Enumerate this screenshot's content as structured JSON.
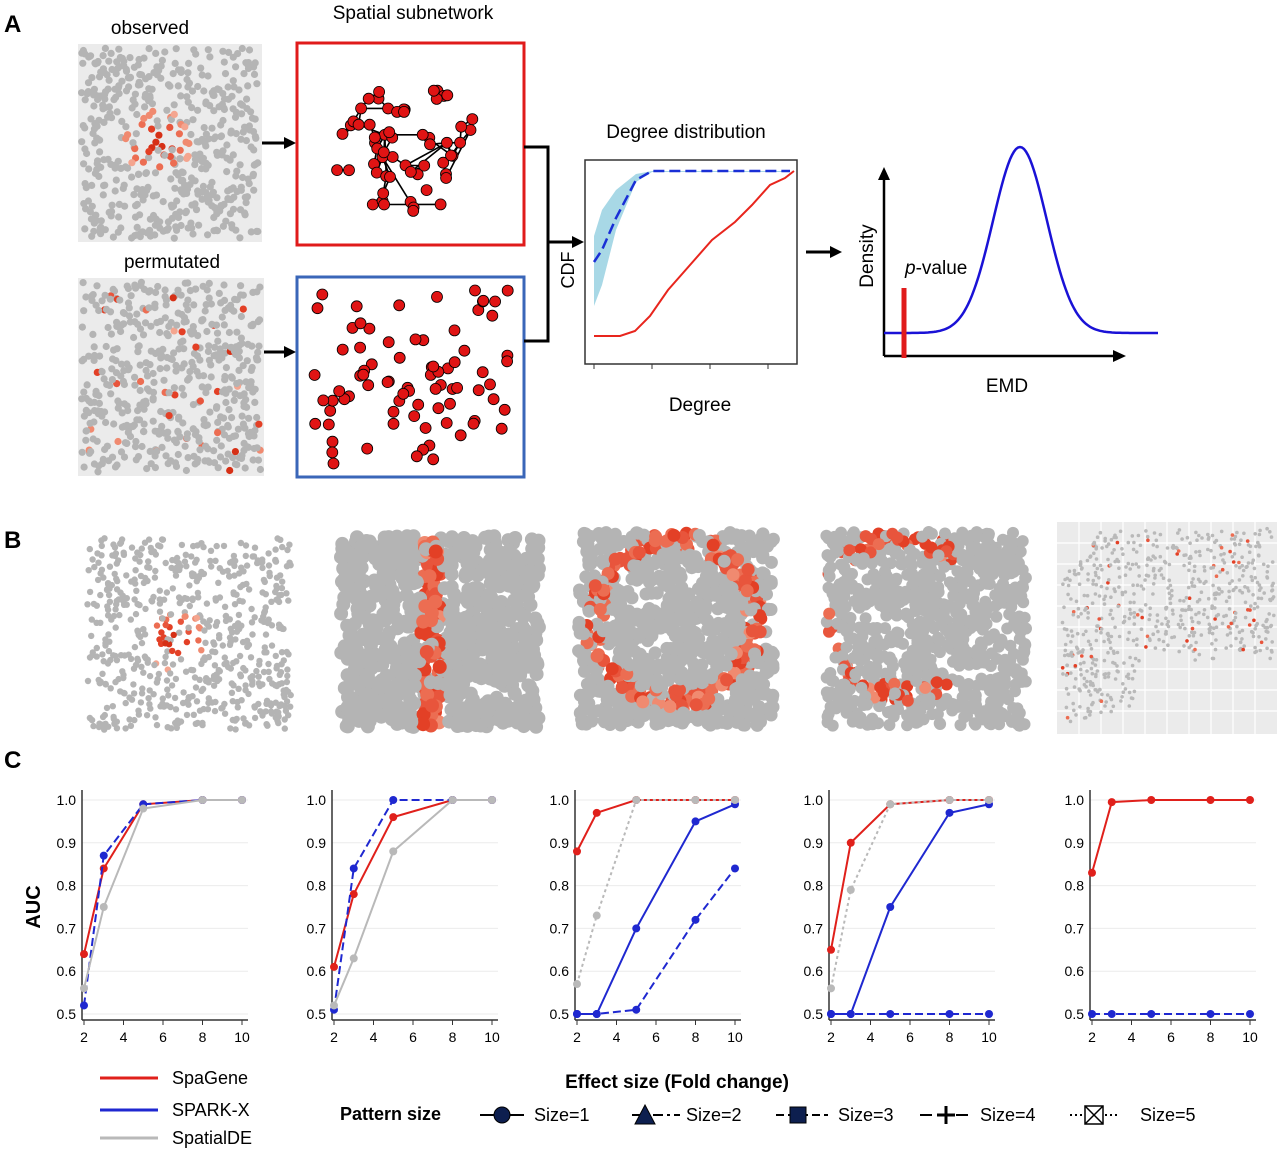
{
  "panel_labels": [
    "A",
    "B",
    "C"
  ],
  "panelA": {
    "observed_label": "observed",
    "permutated_label": "permutated",
    "subnetwork_title": "Spatial subnetwork",
    "degree_title": "Degree distribution",
    "cdf_label": "CDF",
    "degree_label": "Degree",
    "density_label": "Density",
    "pvalue_italic": "p",
    "pvalue_rest": "-value",
    "emd_label": "EMD",
    "colors": {
      "observed_net": "#e01b1b",
      "permuted_net": "#3a66b8",
      "cdf_obs": "#e8251d",
      "cdf_null": "#1a2fd6",
      "band": "#a8d8e6",
      "density": "#1a12d6"
    }
  },
  "panelC": {
    "ylabel": "AUC",
    "xlabel": "Effect size (Fold change)",
    "yticks": [
      "0.5",
      "0.6",
      "0.7",
      "0.8",
      "0.9",
      "1.0"
    ],
    "xticks": [
      "2",
      "4",
      "6",
      "8",
      "10"
    ],
    "methods": [
      {
        "name": "SpaGene",
        "color": "#e0201b"
      },
      {
        "name": "SPARK-X",
        "color": "#1f28d0"
      },
      {
        "name": "SpatialDE",
        "color": "#b9b9b9"
      }
    ],
    "pattern_size_title": "Pattern size",
    "pattern_sizes": [
      "Size=1",
      "Size=2",
      "Size=3",
      "Size=4",
      "Size=5"
    ]
  },
  "chart_data": [
    {
      "type": "line",
      "panel": "C1",
      "x": [
        2,
        3,
        5,
        8,
        10
      ],
      "ylim": [
        0.5,
        1.0
      ],
      "ylabel": "AUC",
      "series": [
        {
          "name": "SpaGene",
          "values": [
            0.64,
            0.84,
            0.99,
            1.0,
            1.0
          ]
        },
        {
          "name": "SPARK-X",
          "values": [
            0.52,
            0.87,
            0.99,
            1.0,
            1.0
          ]
        },
        {
          "name": "SpatialDE",
          "values": [
            0.56,
            0.75,
            0.98,
            1.0,
            1.0
          ]
        }
      ]
    },
    {
      "type": "line",
      "panel": "C2",
      "x": [
        2,
        3,
        5,
        8,
        10
      ],
      "ylim": [
        0.5,
        1.0
      ],
      "series": [
        {
          "name": "SpaGene",
          "values": [
            0.61,
            0.78,
            0.96,
            1.0,
            1.0
          ]
        },
        {
          "name": "SPARK-X",
          "values": [
            0.51,
            0.84,
            1.0,
            1.0,
            1.0
          ]
        },
        {
          "name": "SpatialDE",
          "values": [
            0.52,
            0.63,
            0.88,
            1.0,
            1.0
          ]
        }
      ]
    },
    {
      "type": "line",
      "panel": "C3",
      "x": [
        2,
        3,
        5,
        8,
        10
      ],
      "ylim": [
        0.5,
        1.0
      ],
      "series": [
        {
          "name": "SpaGene",
          "values": [
            0.88,
            0.97,
            1.0,
            1.0,
            1.0
          ]
        },
        {
          "name": "SPARK-X",
          "values": [
            0.5,
            0.5,
            0.51,
            0.72,
            0.84
          ]
        },
        {
          "name": "SPARK-X",
          "values": [
            0.5,
            0.5,
            0.7,
            0.95,
            0.99
          ]
        },
        {
          "name": "SpatialDE",
          "values": [
            0.57,
            0.73,
            1.0,
            1.0,
            1.0
          ]
        }
      ]
    },
    {
      "type": "line",
      "panel": "C4",
      "x": [
        2,
        3,
        5,
        8,
        10
      ],
      "ylim": [
        0.5,
        1.0
      ],
      "series": [
        {
          "name": "SpaGene",
          "values": [
            0.65,
            0.9,
            0.99,
            1.0,
            1.0
          ]
        },
        {
          "name": "SPARK-X",
          "values": [
            0.5,
            0.5,
            0.5,
            0.5,
            0.5
          ]
        },
        {
          "name": "SPARK-X",
          "values": [
            0.5,
            0.5,
            0.75,
            0.97,
            0.99
          ]
        },
        {
          "name": "SpatialDE",
          "values": [
            0.56,
            0.79,
            0.99,
            1.0,
            1.0
          ]
        }
      ]
    },
    {
      "type": "line",
      "panel": "C5",
      "x": [
        2,
        3,
        5,
        8,
        10
      ],
      "ylim": [
        0.5,
        1.0
      ],
      "series": [
        {
          "name": "SpaGene",
          "values": [
            0.83,
            0.995,
            1.0,
            1.0,
            1.0
          ]
        },
        {
          "name": "SPARK-X",
          "values": [
            0.5,
            0.5,
            0.5,
            0.5,
            0.5
          ]
        }
      ]
    }
  ]
}
